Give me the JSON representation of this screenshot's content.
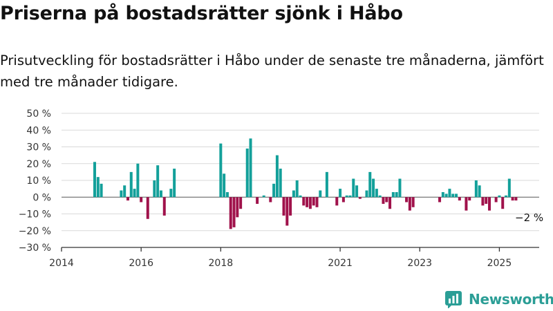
{
  "header": {
    "title": "Priserna på bostadsrätter sjönk i Håbo",
    "subtitle": "Prisutveckling för bostadsrätter i Håbo under de senaste tre månaderna, jämfört med tre månader tidigare."
  },
  "brand": {
    "name": "Newsworthy",
    "color": "#2b9e96",
    "icon": "newsworthy-logo-icon"
  },
  "colors": {
    "positive": "#13a09a",
    "negative": "#a0124b",
    "grid": "#d9d9d9",
    "axis": "#333333"
  },
  "chart_data": {
    "type": "bar",
    "title": "",
    "xlabel": "",
    "ylabel": "",
    "ylim": [
      -30,
      50
    ],
    "yticks": [
      -30,
      -20,
      -10,
      0,
      10,
      20,
      30,
      40,
      50
    ],
    "ytick_labels": [
      "−30 %",
      "−20 %",
      "−10 %",
      "0 %",
      "10 %",
      "20 %",
      "30 %",
      "40 %",
      "50 %"
    ],
    "xlim": [
      "2014-01",
      "2026-01"
    ],
    "xticks": [
      "2014-01",
      "2016-01",
      "2018-01",
      "2021-01",
      "2023-01",
      "2025-01"
    ],
    "xtick_labels": [
      "2014",
      "2016",
      "2018",
      "2021",
      "2023",
      "2025"
    ],
    "grid": true,
    "annotation": {
      "date": "2025-05",
      "text": "−2 %"
    },
    "points": [
      {
        "date": "2014-11",
        "value": 21
      },
      {
        "date": "2014-12",
        "value": 12
      },
      {
        "date": "2015-01",
        "value": 8
      },
      {
        "date": "2015-07",
        "value": 4
      },
      {
        "date": "2015-08",
        "value": 7
      },
      {
        "date": "2015-09",
        "value": -2
      },
      {
        "date": "2015-10",
        "value": 15
      },
      {
        "date": "2015-11",
        "value": 5
      },
      {
        "date": "2015-12",
        "value": 20
      },
      {
        "date": "2016-01",
        "value": -3
      },
      {
        "date": "2016-03",
        "value": -13
      },
      {
        "date": "2016-05",
        "value": 10
      },
      {
        "date": "2016-06",
        "value": 19
      },
      {
        "date": "2016-07",
        "value": 4
      },
      {
        "date": "2016-08",
        "value": -11
      },
      {
        "date": "2016-10",
        "value": 5
      },
      {
        "date": "2016-11",
        "value": 17
      },
      {
        "date": "2018-01",
        "value": 32
      },
      {
        "date": "2018-02",
        "value": 14
      },
      {
        "date": "2018-03",
        "value": 3
      },
      {
        "date": "2018-04",
        "value": -19
      },
      {
        "date": "2018-05",
        "value": -18
      },
      {
        "date": "2018-06",
        "value": -12
      },
      {
        "date": "2018-07",
        "value": -7
      },
      {
        "date": "2018-09",
        "value": 29
      },
      {
        "date": "2018-10",
        "value": 35
      },
      {
        "date": "2018-12",
        "value": -4
      },
      {
        "date": "2019-02",
        "value": 1
      },
      {
        "date": "2019-04",
        "value": -3
      },
      {
        "date": "2019-05",
        "value": 8
      },
      {
        "date": "2019-06",
        "value": 25
      },
      {
        "date": "2019-07",
        "value": 17
      },
      {
        "date": "2019-08",
        "value": -11
      },
      {
        "date": "2019-09",
        "value": -17
      },
      {
        "date": "2019-10",
        "value": -11
      },
      {
        "date": "2019-11",
        "value": 4
      },
      {
        "date": "2019-12",
        "value": 10
      },
      {
        "date": "2020-01",
        "value": 1
      },
      {
        "date": "2020-02",
        "value": -5
      },
      {
        "date": "2020-03",
        "value": -6
      },
      {
        "date": "2020-04",
        "value": -7
      },
      {
        "date": "2020-05",
        "value": -5
      },
      {
        "date": "2020-06",
        "value": -6
      },
      {
        "date": "2020-07",
        "value": 4
      },
      {
        "date": "2020-09",
        "value": 15
      },
      {
        "date": "2020-12",
        "value": -5
      },
      {
        "date": "2021-01",
        "value": 5
      },
      {
        "date": "2021-02",
        "value": -3
      },
      {
        "date": "2021-03",
        "value": 1
      },
      {
        "date": "2021-04",
        "value": 1
      },
      {
        "date": "2021-05",
        "value": 11
      },
      {
        "date": "2021-06",
        "value": 7
      },
      {
        "date": "2021-07",
        "value": -1
      },
      {
        "date": "2021-09",
        "value": 4
      },
      {
        "date": "2021-10",
        "value": 15
      },
      {
        "date": "2021-11",
        "value": 11
      },
      {
        "date": "2021-12",
        "value": 5
      },
      {
        "date": "2022-01",
        "value": 1
      },
      {
        "date": "2022-02",
        "value": -4
      },
      {
        "date": "2022-03",
        "value": -3
      },
      {
        "date": "2022-04",
        "value": -7
      },
      {
        "date": "2022-05",
        "value": 3
      },
      {
        "date": "2022-06",
        "value": 3
      },
      {
        "date": "2022-07",
        "value": 11
      },
      {
        "date": "2022-09",
        "value": -3
      },
      {
        "date": "2022-10",
        "value": -8
      },
      {
        "date": "2022-11",
        "value": -6
      },
      {
        "date": "2023-07",
        "value": -3
      },
      {
        "date": "2023-08",
        "value": 3
      },
      {
        "date": "2023-09",
        "value": 2
      },
      {
        "date": "2023-10",
        "value": 5
      },
      {
        "date": "2023-11",
        "value": 2
      },
      {
        "date": "2023-12",
        "value": 2
      },
      {
        "date": "2024-01",
        "value": -2
      },
      {
        "date": "2024-03",
        "value": -8
      },
      {
        "date": "2024-04",
        "value": -2
      },
      {
        "date": "2024-06",
        "value": 10
      },
      {
        "date": "2024-07",
        "value": 7
      },
      {
        "date": "2024-08",
        "value": -5
      },
      {
        "date": "2024-09",
        "value": -4
      },
      {
        "date": "2024-10",
        "value": -8
      },
      {
        "date": "2024-12",
        "value": -3
      },
      {
        "date": "2025-01",
        "value": 1
      },
      {
        "date": "2025-02",
        "value": -7
      },
      {
        "date": "2025-03",
        "value": 1
      },
      {
        "date": "2025-04",
        "value": 11
      },
      {
        "date": "2025-05",
        "value": -2
      },
      {
        "date": "2025-06",
        "value": -2
      }
    ]
  }
}
